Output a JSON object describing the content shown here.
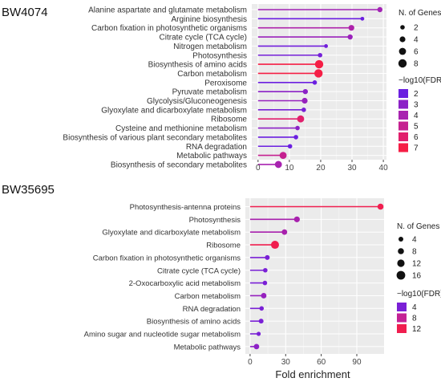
{
  "x_axis_title": "Fold enrichment",
  "legend_texts": {
    "size_title": "N. of Genes",
    "color_title": "−log10(FDR)"
  },
  "chart_data": [
    {
      "type": "lollipop",
      "title": "BW4074",
      "xlabel": "Fold enrichment",
      "xlim": [
        -2,
        41
      ],
      "xticks": [
        0,
        10,
        20,
        30,
        40
      ],
      "grid": true,
      "categories": [
        "Alanine aspartate and glutamate metabolism",
        "Arginine biosynthesis",
        "Carbon fixation in photosynthetic organisms",
        "Citrate cycle (TCA cycle)",
        "Nitrogen metabolism",
        "Photosynthesis",
        "Biosynthesis of amino acids",
        "Carbon metabolism",
        "Peroxisome",
        "Pyruvate metabolism",
        "Glycolysis/Gluconeogenesis",
        "Glyoxylate and dicarboxylate metabolism",
        "Ribosome",
        "Cysteine and methionine metabolism",
        "Biosynthesis of various plant secondary metabolites",
        "RNA degradation",
        "Metabolic pathways",
        "Biosynthesis of secondary metabolites"
      ],
      "values": [
        38.9,
        33.3,
        29.8,
        29.4,
        21.7,
        19.8,
        19.5,
        19.3,
        18.1,
        15.1,
        14.9,
        14.6,
        13.6,
        12.6,
        12.1,
        10.2,
        8.0,
        6.5
      ],
      "n_genes": [
        3,
        1,
        4,
        3,
        1,
        2,
        8,
        8,
        2,
        3,
        4,
        2,
        6,
        2,
        2,
        2,
        6,
        6
      ],
      "neg_log10_fdr": [
        3.8,
        2.0,
        4.2,
        3.5,
        2.2,
        2.3,
        7.0,
        7.0,
        2.0,
        3.0,
        3.4,
        2.4,
        6.0,
        3.0,
        1.6,
        1.4,
        5.0,
        4.0
      ],
      "legend_size": {
        "title": "N. of Genes",
        "labels": [
          "2",
          "4",
          "6",
          "8"
        ],
        "values": [
          2,
          4,
          6,
          8
        ]
      },
      "legend_color": {
        "title": "−log10(FDR)",
        "labels": [
          "2",
          "3",
          "4",
          "5",
          "6",
          "7"
        ],
        "values": [
          2,
          3,
          4,
          5,
          6,
          7
        ],
        "colors": [
          "#6b1fe0",
          "#8b21c6",
          "#a823b0",
          "#c52190",
          "#e11f6c",
          "#f51e45"
        ]
      }
    },
    {
      "type": "lollipop",
      "title": "BW35695",
      "xlabel": "Fold enrichment",
      "xlim": [
        -4,
        113
      ],
      "xticks": [
        0,
        30,
        60,
        90
      ],
      "grid": true,
      "categories": [
        "Photosynthesis-antenna proteins",
        "Photosynthesis",
        "Glyoxylate and dicarboxylate metabolism",
        "Ribosome",
        "Carbon fixation in photosynthetic organisms",
        "Citrate cycle (TCA cycle)",
        "2-Oxocarboxylic acid metabolism",
        "Carbon metabolism",
        "RNA degradation",
        "Biosynthesis of amino acids",
        "Amino sugar and nucleotide sugar metabolism",
        "Metabolic pathways"
      ],
      "values": [
        110,
        39.5,
        29,
        21,
        14.5,
        12.8,
        12.5,
        11.5,
        9.7,
        9.3,
        7.2,
        5.4
      ],
      "n_genes": [
        8,
        7,
        6,
        14,
        4,
        3,
        3,
        6,
        3,
        4,
        2,
        6
      ],
      "neg_log10_fdr": [
        13,
        6.5,
        6.5,
        13,
        4,
        3,
        3,
        5.5,
        3,
        4,
        2,
        5
      ],
      "legend_size": {
        "title": "N. of Genes",
        "labels": [
          "4",
          "8",
          "12",
          "16"
        ],
        "values": [
          4,
          8,
          12,
          16
        ]
      },
      "legend_color": {
        "title": "−log10(FDR)",
        "labels": [
          "4",
          "8",
          "12"
        ],
        "values": [
          4,
          8,
          12
        ],
        "colors": [
          "#7a20d6",
          "#c42295",
          "#f01e4f"
        ]
      }
    }
  ]
}
